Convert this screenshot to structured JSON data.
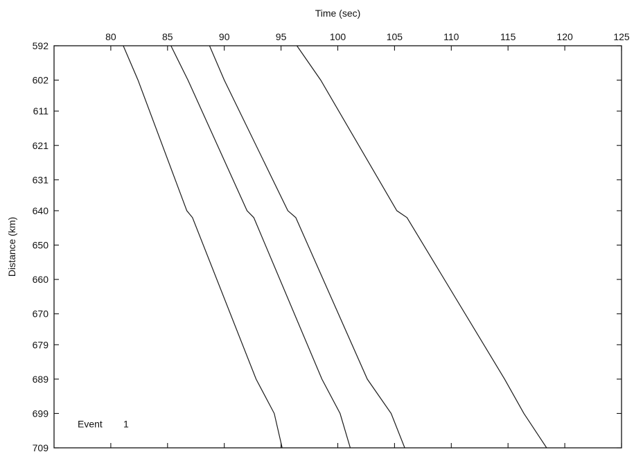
{
  "chart_data": {
    "type": "line",
    "title": "",
    "xlabel": "Time (sec)",
    "ylabel": "Distance (km)",
    "x_axis_position": "top",
    "y_inverted": true,
    "xlim": [
      75,
      125
    ],
    "ylim": [
      592,
      709
    ],
    "x_ticks": [
      80,
      85,
      90,
      95,
      100,
      105,
      110,
      115,
      120,
      125
    ],
    "y_ticks": [
      592,
      602,
      611,
      621,
      631,
      640,
      650,
      660,
      670,
      679,
      689,
      699,
      709
    ],
    "grid": false,
    "annotation": {
      "label": "Event",
      "value": "1"
    },
    "series": [
      {
        "points": [
          [
            81.1,
            592
          ],
          [
            82.4,
            602
          ],
          [
            86.7,
            640
          ],
          [
            87.2,
            642
          ],
          [
            92.8,
            689
          ],
          [
            94.4,
            699
          ],
          [
            95.1,
            709
          ]
        ]
      },
      {
        "points": [
          [
            85.3,
            592
          ],
          [
            86.8,
            602
          ],
          [
            92.0,
            640
          ],
          [
            92.6,
            642
          ],
          [
            98.6,
            689
          ],
          [
            100.2,
            699
          ],
          [
            101.1,
            709
          ]
        ]
      },
      {
        "points": [
          [
            88.7,
            592
          ],
          [
            90.0,
            602
          ],
          [
            95.6,
            640
          ],
          [
            96.3,
            642
          ],
          [
            102.6,
            689
          ],
          [
            104.7,
            699
          ],
          [
            105.9,
            709
          ]
        ]
      },
      {
        "points": [
          [
            96.4,
            592
          ],
          [
            98.5,
            602
          ],
          [
            105.2,
            640
          ],
          [
            106.1,
            642
          ],
          [
            114.7,
            689
          ],
          [
            116.4,
            699
          ],
          [
            118.4,
            709
          ]
        ]
      }
    ]
  }
}
